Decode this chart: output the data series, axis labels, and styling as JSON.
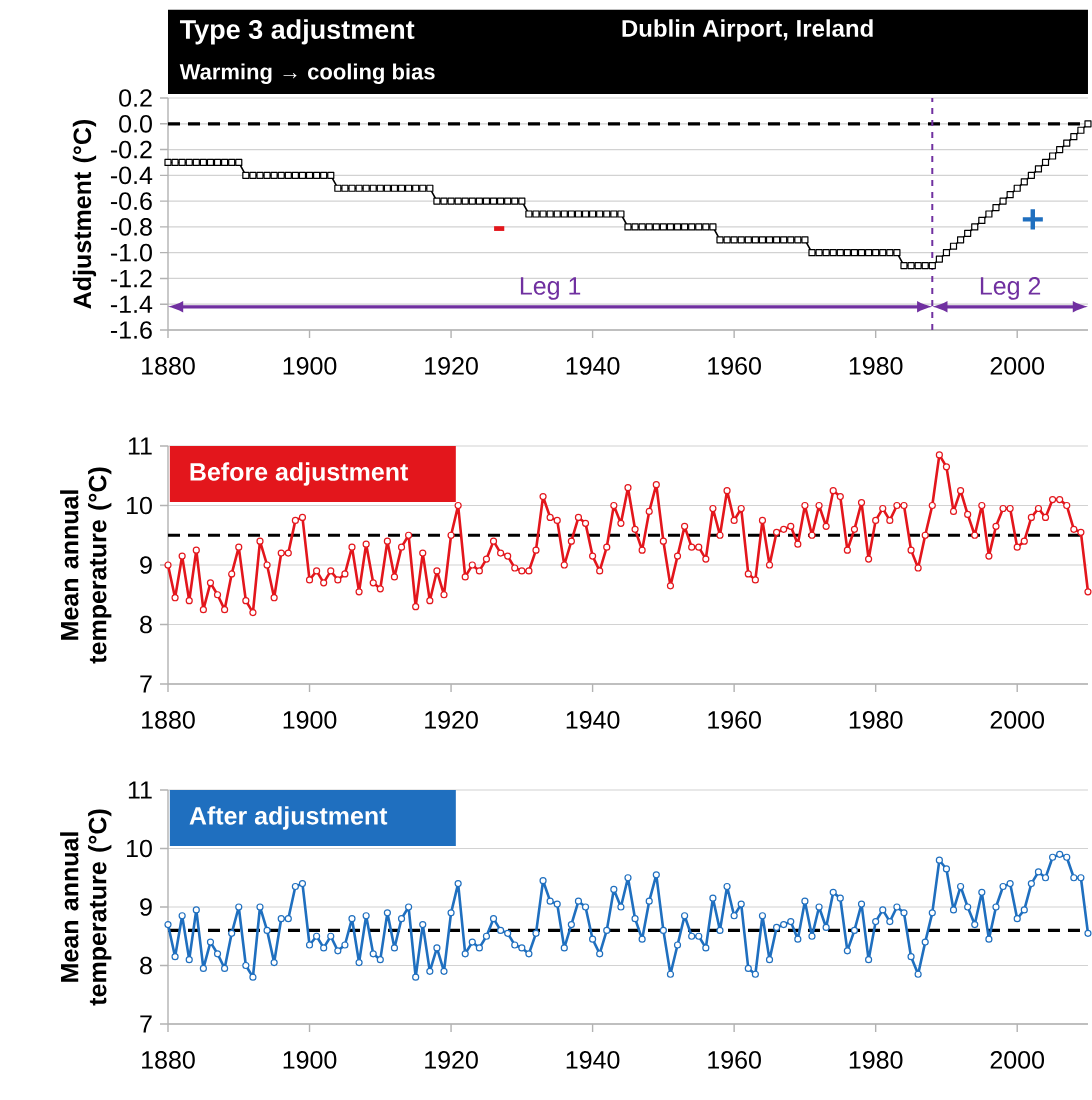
{
  "chart_data": [
    {
      "type": "line",
      "title": "Type 3 adjustment",
      "subtitle": "Warming → cooling bias",
      "ylabel": "Adjustment (°C)",
      "annotations": [
        "Dublin Airport, Ireland",
        "Leg 1",
        "Leg 2",
        "-",
        "+"
      ],
      "x": [
        1880,
        1881,
        1882,
        1883,
        1884,
        1885,
        1886,
        1887,
        1888,
        1889,
        1890,
        1891,
        1892,
        1893,
        1894,
        1895,
        1896,
        1897,
        1898,
        1899,
        1900,
        1901,
        1902,
        1903,
        1904,
        1905,
        1906,
        1907,
        1908,
        1909,
        1910,
        1911,
        1912,
        1913,
        1914,
        1915,
        1916,
        1917,
        1918,
        1919,
        1920,
        1921,
        1922,
        1923,
        1924,
        1925,
        1926,
        1927,
        1928,
        1929,
        1930,
        1931,
        1932,
        1933,
        1934,
        1935,
        1936,
        1937,
        1938,
        1939,
        1940,
        1941,
        1942,
        1943,
        1944,
        1945,
        1946,
        1947,
        1948,
        1949,
        1950,
        1951,
        1952,
        1953,
        1954,
        1955,
        1956,
        1957,
        1958,
        1959,
        1960,
        1961,
        1962,
        1963,
        1964,
        1965,
        1966,
        1967,
        1968,
        1969,
        1970,
        1971,
        1972,
        1973,
        1974,
        1975,
        1976,
        1977,
        1978,
        1979,
        1980,
        1981,
        1982,
        1983,
        1984,
        1985,
        1986,
        1987,
        1988,
        1989,
        1990,
        1991,
        1992,
        1993,
        1994,
        1995,
        1996,
        1997,
        1998,
        1999,
        2000,
        2001,
        2002,
        2003,
        2004,
        2005,
        2006,
        2007,
        2008,
        2009,
        2010
      ],
      "series": [
        {
          "color": "#000000",
          "values": [
            -0.3,
            -0.3,
            -0.3,
            -0.3,
            -0.3,
            -0.3,
            -0.3,
            -0.3,
            -0.3,
            -0.3,
            -0.3,
            -0.4,
            -0.4,
            -0.4,
            -0.4,
            -0.4,
            -0.4,
            -0.4,
            -0.4,
            -0.4,
            -0.4,
            -0.4,
            -0.4,
            -0.4,
            -0.5,
            -0.5,
            -0.5,
            -0.5,
            -0.5,
            -0.5,
            -0.5,
            -0.5,
            -0.5,
            -0.5,
            -0.5,
            -0.5,
            -0.5,
            -0.5,
            -0.6,
            -0.6,
            -0.6,
            -0.6,
            -0.6,
            -0.6,
            -0.6,
            -0.6,
            -0.6,
            -0.6,
            -0.6,
            -0.6,
            -0.6,
            -0.7,
            -0.7,
            -0.7,
            -0.7,
            -0.7,
            -0.7,
            -0.7,
            -0.7,
            -0.7,
            -0.7,
            -0.7,
            -0.7,
            -0.7,
            -0.7,
            -0.8,
            -0.8,
            -0.8,
            -0.8,
            -0.8,
            -0.8,
            -0.8,
            -0.8,
            -0.8,
            -0.8,
            -0.8,
            -0.8,
            -0.8,
            -0.9,
            -0.9,
            -0.9,
            -0.9,
            -0.9,
            -0.9,
            -0.9,
            -0.9,
            -0.9,
            -0.9,
            -0.9,
            -0.9,
            -0.9,
            -1.0,
            -1.0,
            -1.0,
            -1.0,
            -1.0,
            -1.0,
            -1.0,
            -1.0,
            -1.0,
            -1.0,
            -1.0,
            -1.0,
            -1.0,
            -1.1,
            -1.1,
            -1.1,
            -1.1,
            -1.1,
            -1.05,
            -1.0,
            -0.95,
            -0.9,
            -0.85,
            -0.8,
            -0.75,
            -0.7,
            -0.65,
            -0.6,
            -0.55,
            -0.5,
            -0.45,
            -0.4,
            -0.35,
            -0.3,
            -0.25,
            -0.2,
            -0.15,
            -0.1,
            -0.05,
            0.0
          ]
        }
      ],
      "marker": "square",
      "grid": "y",
      "xlim": [
        1880,
        2010
      ],
      "xticks": [
        1880,
        1900,
        1920,
        1940,
        1960,
        1980,
        2000
      ],
      "ylim": [
        -1.6,
        0.2
      ],
      "yticks": [
        {
          "value": 0.2,
          "label": "0.2"
        },
        {
          "value": 0.0,
          "label": "0.0"
        },
        {
          "value": -0.2,
          "label": "-0.2"
        },
        {
          "value": -0.4,
          "label": "-0.4"
        },
        {
          "value": -0.6,
          "label": "-0.6"
        },
        {
          "value": -0.8,
          "label": "-0.8"
        },
        {
          "value": -1.0,
          "label": "-1.0"
        },
        {
          "value": -1.2,
          "label": "-1.2"
        },
        {
          "value": -1.4,
          "label": "-1.4"
        },
        {
          "value": -1.6,
          "label": "-1.6"
        }
      ],
      "ref_lines": [
        {
          "axis": "y",
          "value": 0,
          "color": "#000000",
          "line_style": "dashed"
        },
        {
          "axis": "x",
          "value": 1988,
          "color": "#7030a0",
          "line_style": "dashed"
        }
      ]
    },
    {
      "type": "line",
      "title": "Before adjustment",
      "ylabel": "Mean annual temperature (°C)",
      "x": [
        1880,
        1881,
        1882,
        1883,
        1884,
        1885,
        1886,
        1887,
        1888,
        1889,
        1890,
        1891,
        1892,
        1893,
        1894,
        1895,
        1896,
        1897,
        1898,
        1899,
        1900,
        1901,
        1902,
        1903,
        1904,
        1905,
        1906,
        1907,
        1908,
        1909,
        1910,
        1911,
        1912,
        1913,
        1914,
        1915,
        1916,
        1917,
        1918,
        1919,
        1920,
        1921,
        1922,
        1923,
        1924,
        1925,
        1926,
        1927,
        1928,
        1929,
        1930,
        1931,
        1932,
        1933,
        1934,
        1935,
        1936,
        1937,
        1938,
        1939,
        1940,
        1941,
        1942,
        1943,
        1944,
        1945,
        1946,
        1947,
        1948,
        1949,
        1950,
        1951,
        1952,
        1953,
        1954,
        1955,
        1956,
        1957,
        1958,
        1959,
        1960,
        1961,
        1962,
        1963,
        1964,
        1965,
        1966,
        1967,
        1968,
        1969,
        1970,
        1971,
        1972,
        1973,
        1974,
        1975,
        1976,
        1977,
        1978,
        1979,
        1980,
        1981,
        1982,
        1983,
        1984,
        1985,
        1986,
        1987,
        1988,
        1989,
        1990,
        1991,
        1992,
        1993,
        1994,
        1995,
        1996,
        1997,
        1998,
        1999,
        2000,
        2001,
        2002,
        2003,
        2004,
        2005,
        2006,
        2007,
        2008,
        2009,
        2010
      ],
      "series": [
        {
          "color": "#e3161c",
          "values": [
            9.0,
            8.45,
            9.15,
            8.4,
            9.25,
            8.25,
            8.7,
            8.5,
            8.25,
            8.85,
            9.3,
            8.4,
            8.2,
            9.4,
            9.0,
            8.45,
            9.2,
            9.2,
            9.75,
            9.8,
            8.75,
            8.9,
            8.7,
            8.9,
            8.75,
            8.85,
            9.3,
            8.55,
            9.35,
            8.7,
            8.6,
            9.4,
            8.8,
            9.3,
            9.5,
            8.3,
            9.2,
            8.4,
            8.9,
            8.5,
            9.5,
            10.0,
            8.8,
            9.0,
            8.9,
            9.1,
            9.4,
            9.2,
            9.15,
            8.95,
            8.9,
            8.9,
            9.25,
            10.15,
            9.8,
            9.75,
            9.0,
            9.4,
            9.8,
            9.7,
            9.15,
            8.9,
            9.3,
            10.0,
            9.7,
            10.3,
            9.6,
            9.25,
            9.9,
            10.35,
            9.4,
            8.65,
            9.15,
            9.65,
            9.3,
            9.3,
            9.1,
            9.95,
            9.5,
            10.25,
            9.75,
            9.95,
            8.85,
            8.75,
            9.75,
            9.0,
            9.55,
            9.6,
            9.65,
            9.35,
            10.0,
            9.5,
            10.0,
            9.65,
            10.25,
            10.15,
            9.25,
            9.6,
            10.05,
            9.1,
            9.75,
            9.95,
            9.75,
            10.0,
            10.0,
            9.25,
            8.95,
            9.5,
            10.0,
            10.85,
            10.65,
            9.9,
            10.25,
            9.85,
            9.5,
            10.0,
            9.15,
            9.65,
            9.95,
            9.95,
            9.3,
            9.4,
            9.8,
            9.95,
            9.8,
            10.1,
            10.1,
            10.0,
            9.6,
            9.55,
            8.55
          ]
        }
      ],
      "marker": "circle",
      "grid": "y",
      "xlim": [
        1880,
        2010
      ],
      "xticks": [
        1880,
        1900,
        1920,
        1940,
        1960,
        1980,
        2000
      ],
      "ylim": [
        7,
        11
      ],
      "yticks": [
        7,
        8,
        9,
        10,
        11
      ],
      "ref_lines": [
        {
          "axis": "y",
          "value": 9.5,
          "color": "#000000",
          "line_style": "dashed"
        }
      ]
    },
    {
      "type": "line",
      "title": "After adjustment",
      "ylabel": "Mean annual temperature (°C)",
      "x": [
        1880,
        1881,
        1882,
        1883,
        1884,
        1885,
        1886,
        1887,
        1888,
        1889,
        1890,
        1891,
        1892,
        1893,
        1894,
        1895,
        1896,
        1897,
        1898,
        1899,
        1900,
        1901,
        1902,
        1903,
        1904,
        1905,
        1906,
        1907,
        1908,
        1909,
        1910,
        1911,
        1912,
        1913,
        1914,
        1915,
        1916,
        1917,
        1918,
        1919,
        1920,
        1921,
        1922,
        1923,
        1924,
        1925,
        1926,
        1927,
        1928,
        1929,
        1930,
        1931,
        1932,
        1933,
        1934,
        1935,
        1936,
        1937,
        1938,
        1939,
        1940,
        1941,
        1942,
        1943,
        1944,
        1945,
        1946,
        1947,
        1948,
        1949,
        1950,
        1951,
        1952,
        1953,
        1954,
        1955,
        1956,
        1957,
        1958,
        1959,
        1960,
        1961,
        1962,
        1963,
        1964,
        1965,
        1966,
        1967,
        1968,
        1969,
        1970,
        1971,
        1972,
        1973,
        1974,
        1975,
        1976,
        1977,
        1978,
        1979,
        1980,
        1981,
        1982,
        1983,
        1984,
        1985,
        1986,
        1987,
        1988,
        1989,
        1990,
        1991,
        1992,
        1993,
        1994,
        1995,
        1996,
        1997,
        1998,
        1999,
        2000,
        2001,
        2002,
        2003,
        2004,
        2005,
        2006,
        2007,
        2008,
        2009,
        2010
      ],
      "series": [
        {
          "color": "#1f6fbf",
          "values": [
            8.7,
            8.15,
            8.85,
            8.1,
            8.95,
            7.95,
            8.4,
            8.2,
            7.95,
            8.55,
            9.0,
            8.0,
            7.8,
            9.0,
            8.6,
            8.05,
            8.8,
            8.8,
            9.35,
            9.4,
            8.35,
            8.5,
            8.3,
            8.5,
            8.25,
            8.35,
            8.8,
            8.05,
            8.85,
            8.2,
            8.1,
            8.9,
            8.3,
            8.8,
            9.0,
            7.8,
            8.7,
            7.9,
            8.3,
            7.9,
            8.9,
            9.4,
            8.2,
            8.4,
            8.3,
            8.5,
            8.8,
            8.6,
            8.55,
            8.35,
            8.3,
            8.2,
            8.55,
            9.45,
            9.1,
            9.05,
            8.3,
            8.7,
            9.1,
            9.0,
            8.45,
            8.2,
            8.6,
            9.3,
            9.0,
            9.5,
            8.8,
            8.45,
            9.1,
            9.55,
            8.6,
            7.85,
            8.35,
            8.85,
            8.5,
            8.5,
            8.3,
            9.15,
            8.6,
            9.35,
            8.85,
            9.05,
            7.95,
            7.85,
            8.85,
            8.1,
            8.65,
            8.7,
            8.75,
            8.45,
            9.1,
            8.5,
            9.0,
            8.65,
            9.25,
            9.15,
            8.25,
            8.6,
            9.05,
            8.1,
            8.75,
            8.95,
            8.75,
            9.0,
            8.9,
            8.15,
            7.85,
            8.4,
            8.9,
            9.8,
            9.65,
            8.95,
            9.35,
            9.0,
            8.7,
            9.25,
            8.45,
            9.0,
            9.35,
            9.4,
            8.8,
            8.95,
            9.4,
            9.6,
            9.5,
            9.85,
            9.9,
            9.85,
            9.5,
            9.5,
            8.55
          ]
        }
      ],
      "marker": "circle",
      "grid": "y",
      "xlim": [
        1880,
        2010
      ],
      "xticks": [
        1880,
        1900,
        1920,
        1940,
        1960,
        1980,
        2000
      ],
      "ylim": [
        7,
        11
      ],
      "yticks": [
        7,
        8,
        9,
        10,
        11
      ],
      "ref_lines": [
        {
          "axis": "y",
          "value": 8.6,
          "color": "#000000",
          "line_style": "dashed"
        }
      ]
    }
  ]
}
